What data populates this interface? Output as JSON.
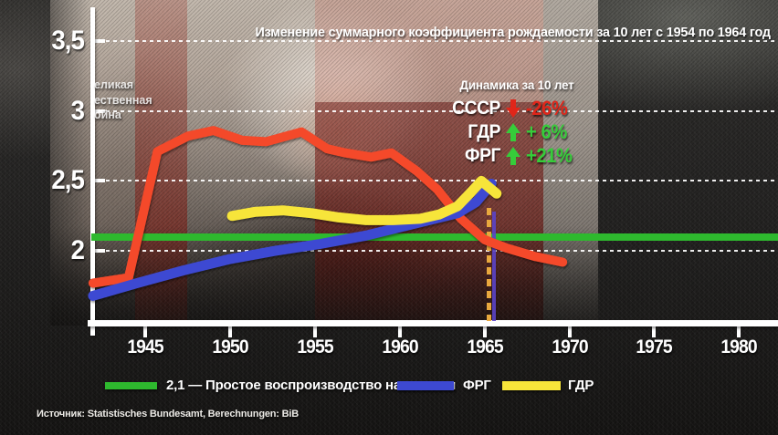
{
  "title": "Изменение суммарного коэффициента рождаемости за 10 лет с 1954 по 1964 год",
  "war_annotation": {
    "lines": [
      "еликая",
      "ественная",
      "ойна"
    ]
  },
  "stats_panel": {
    "title": "Динамика за 10 лет",
    "rows": [
      {
        "label": "СССР",
        "direction": "down",
        "value": "-26%",
        "color": "#e0261a"
      },
      {
        "label": "ГДР",
        "direction": "up",
        "value": "+ 6%",
        "color": "#36cc3a"
      },
      {
        "label": "ФРГ",
        "direction": "up",
        "value": "+21%",
        "color": "#36cc3a"
      }
    ]
  },
  "legend": {
    "items": [
      {
        "label": "2,1 — Простое воспроизводство населения",
        "color": "#2eb92e"
      },
      {
        "label": "ФРГ",
        "color": "#3d49d2"
      },
      {
        "label": "ГДР",
        "color": "#f7e53a"
      }
    ]
  },
  "source": "Источник: Statistisches Bundesamt, Berechnungen: BiB",
  "chart_data": {
    "type": "line",
    "title": "Изменение суммарного коэффициента рождаемости за 10 лет с 1954 по 1964 год",
    "x_axis": {
      "ticks": [
        1945,
        1950,
        1955,
        1960,
        1965,
        1970,
        1975,
        1980
      ],
      "range": [
        1941.8,
        1982.3
      ]
    },
    "y_axis": {
      "tick_labels": [
        "3,5",
        "3",
        "2,5",
        "2"
      ],
      "tick_values": [
        3.5,
        3.0,
        2.5,
        2.0
      ],
      "range": [
        1.5,
        3.74
      ]
    },
    "grid": true,
    "legend_position": "bottom",
    "reference_line": {
      "value": 2.1,
      "label": "2,1 — Простое воспроизводство населения",
      "color": "#2eb92e"
    },
    "event_marker": {
      "year": 1965,
      "dash_color": "#e9a83e",
      "line_color": "#5b44c8"
    },
    "series": [
      {
        "name": "СССР",
        "color": "#f4492a",
        "width": 10,
        "points": [
          [
            1941.9,
            1.77
          ],
          [
            1944.0,
            1.81
          ],
          [
            1945.7,
            2.71
          ],
          [
            1947.5,
            2.82
          ],
          [
            1949.0,
            2.86
          ],
          [
            1950.7,
            2.79
          ],
          [
            1952.1,
            2.78
          ],
          [
            1954.2,
            2.85
          ],
          [
            1955.7,
            2.73
          ],
          [
            1956.8,
            2.7
          ],
          [
            1958.3,
            2.67
          ],
          [
            1959.5,
            2.7
          ],
          [
            1961.0,
            2.57
          ],
          [
            1962.2,
            2.44
          ],
          [
            1963.6,
            2.23
          ],
          [
            1965.0,
            2.08
          ],
          [
            1966.3,
            2.02
          ],
          [
            1968.0,
            1.96
          ],
          [
            1969.6,
            1.92
          ]
        ]
      },
      {
        "name": "ФРГ",
        "color": "#3d49d2",
        "width": 11,
        "points": [
          [
            1941.9,
            1.68
          ],
          [
            1944.5,
            1.77
          ],
          [
            1947.2,
            1.86
          ],
          [
            1949.9,
            1.94
          ],
          [
            1952.6,
            2.0
          ],
          [
            1955.3,
            2.05
          ],
          [
            1958.0,
            2.11
          ],
          [
            1960.7,
            2.19
          ],
          [
            1963.4,
            2.27
          ],
          [
            1964.5,
            2.35
          ],
          [
            1965.4,
            2.48
          ]
        ]
      },
      {
        "name": "ГДР",
        "color": "#f7e53a",
        "width": 11,
        "points": [
          [
            1950.1,
            2.25
          ],
          [
            1951.5,
            2.28
          ],
          [
            1953.1,
            2.29
          ],
          [
            1954.8,
            2.27
          ],
          [
            1956.4,
            2.24
          ],
          [
            1958.0,
            2.22
          ],
          [
            1959.6,
            2.22
          ],
          [
            1961.2,
            2.23
          ],
          [
            1962.3,
            2.26
          ],
          [
            1963.4,
            2.32
          ],
          [
            1964.2,
            2.42
          ],
          [
            1964.8,
            2.5
          ],
          [
            1965.7,
            2.41
          ]
        ]
      }
    ]
  }
}
